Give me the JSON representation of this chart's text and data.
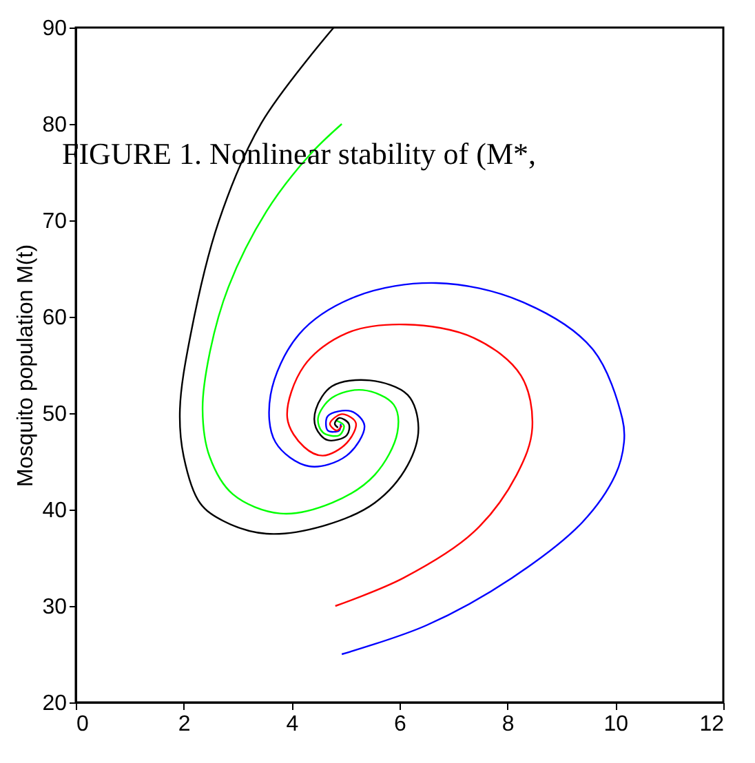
{
  "chart_data": {
    "type": "line",
    "ylabel": "Mosquito population M(t)",
    "xlim": [
      0,
      12
    ],
    "ylim": [
      20,
      90
    ],
    "xticks": [
      0,
      2,
      4,
      6,
      8,
      10,
      12
    ],
    "yticks": [
      20,
      30,
      40,
      50,
      60,
      70,
      80,
      90
    ],
    "grid": false,
    "legend": false,
    "marker": "none",
    "line_style": "solid",
    "annotations": [
      "FIGURE 1. Nonlinear stability of (M*,"
    ],
    "series": [
      {
        "color": "#0000ff",
        "x": [
          4.93,
          6.5,
          8.08,
          9.39,
          10.0,
          10.16,
          10.13,
          9.57,
          8.25,
          6.68,
          5.19,
          4.14,
          3.61,
          3.7,
          4.32,
          5.02,
          5.35,
          5.1,
          4.67,
          4.67,
          4.88,
          4.91
        ],
        "values": [
          25.0,
          28.0,
          32.9,
          38.7,
          43.6,
          47.0,
          49.4,
          56.7,
          61.6,
          63.5,
          62.1,
          58.2,
          51.9,
          47.0,
          44.5,
          45.6,
          48.7,
          50.2,
          49.7,
          48.2,
          48.2,
          48.9
        ]
      },
      {
        "color": "#ff0000",
        "x": [
          4.81,
          6.07,
          7.38,
          8.17,
          8.46,
          8.25,
          7.38,
          6.11,
          5.02,
          4.23,
          3.92,
          4.23,
          4.58,
          5.02,
          5.19,
          4.93,
          4.71,
          4.84,
          4.93
        ],
        "values": [
          30.0,
          32.9,
          37.7,
          43.6,
          48.5,
          53.9,
          57.8,
          59.2,
          58.3,
          54.9,
          49.5,
          46.5,
          45.6,
          46.9,
          49.0,
          49.9,
          48.9,
          48.2,
          48.7
        ]
      },
      {
        "color": "#00ff00",
        "x": [
          4.93,
          4.32,
          3.53,
          2.83,
          2.48,
          2.35,
          2.48,
          2.91,
          3.79,
          4.75,
          5.54,
          5.96,
          5.89,
          5.32,
          4.75,
          4.49,
          4.58,
          4.88,
          4.97,
          4.84
        ],
        "values": [
          80.0,
          76.7,
          70.9,
          63.1,
          56.2,
          50.4,
          45.5,
          41.6,
          39.6,
          40.7,
          43.6,
          48.0,
          50.9,
          52.4,
          51.6,
          49.5,
          48.0,
          47.7,
          48.7,
          49.2
        ]
      },
      {
        "color": "#000000",
        "x": [
          4.78,
          3.44,
          2.65,
          2.13,
          1.93,
          2.0,
          2.3,
          2.74,
          3.53,
          4.58,
          5.54,
          6.15,
          6.35,
          6.15,
          5.45,
          4.75,
          4.45,
          4.45,
          4.67,
          5.02,
          5.06,
          4.88,
          4.8,
          4.86
        ],
        "values": [
          90.0,
          80.1,
          69.9,
          58.2,
          50.4,
          45.5,
          40.7,
          38.8,
          37.5,
          38.3,
          40.7,
          44.6,
          48.5,
          51.9,
          53.4,
          52.8,
          50.4,
          48.5,
          47.2,
          47.7,
          48.9,
          49.5,
          48.9,
          48.5
        ]
      }
    ]
  }
}
